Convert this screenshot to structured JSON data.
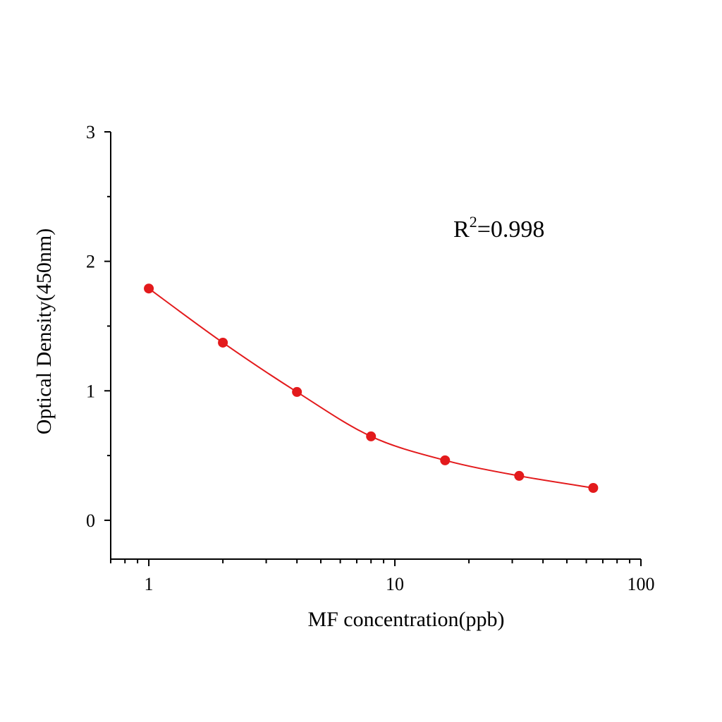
{
  "chart_data": {
    "type": "scatter",
    "xlabel": "MF concentration(ppb)",
    "ylabel": "Optical Density(450nm)",
    "xscale": "log",
    "xlim": [
      0.7,
      100
    ],
    "ylim": [
      -0.3,
      3
    ],
    "xticks": [
      1,
      10,
      100
    ],
    "xtick_labels": [
      "1",
      "10",
      "100"
    ],
    "yticks": [
      0,
      1,
      2,
      3
    ],
    "ytick_labels": [
      "0",
      "1",
      "2",
      "3"
    ],
    "grid": false,
    "series": [
      {
        "x": [
          1,
          2,
          4,
          8,
          16,
          32,
          64
        ],
        "y": [
          1.79,
          1.372,
          0.991,
          0.648,
          0.463,
          0.343,
          0.25
        ],
        "color": "#e31a1c",
        "fit_curve": true
      }
    ],
    "annotation": {
      "base": "R",
      "sup": "2",
      "rest": "=0.998"
    }
  }
}
